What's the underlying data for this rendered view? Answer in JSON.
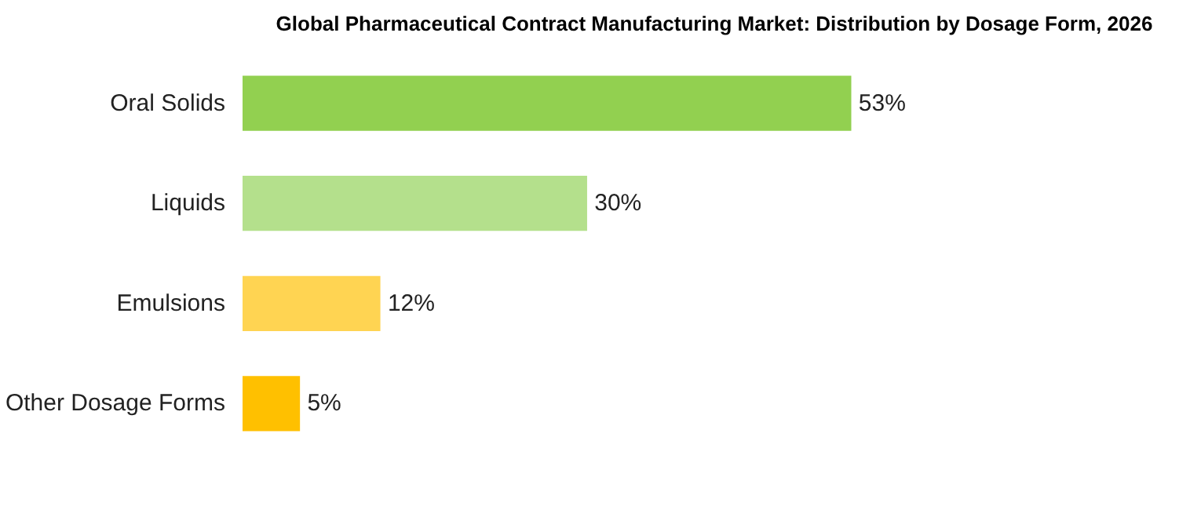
{
  "chart_data": {
    "type": "bar",
    "orientation": "horizontal",
    "title": "Global Pharmaceutical Contract Manufacturing Market: Distribution by Dosage Form, 2026",
    "categories": [
      "Oral Solids",
      "Liquids",
      "Emulsions",
      "Other Dosage Forms"
    ],
    "values": [
      53,
      30,
      12,
      5
    ],
    "colors": [
      "#92d050",
      "#b4e08c",
      "#ffd452",
      "#ffc000"
    ],
    "value_labels": [
      "53%",
      "30%",
      "12%",
      "5%"
    ],
    "grid": false
  }
}
